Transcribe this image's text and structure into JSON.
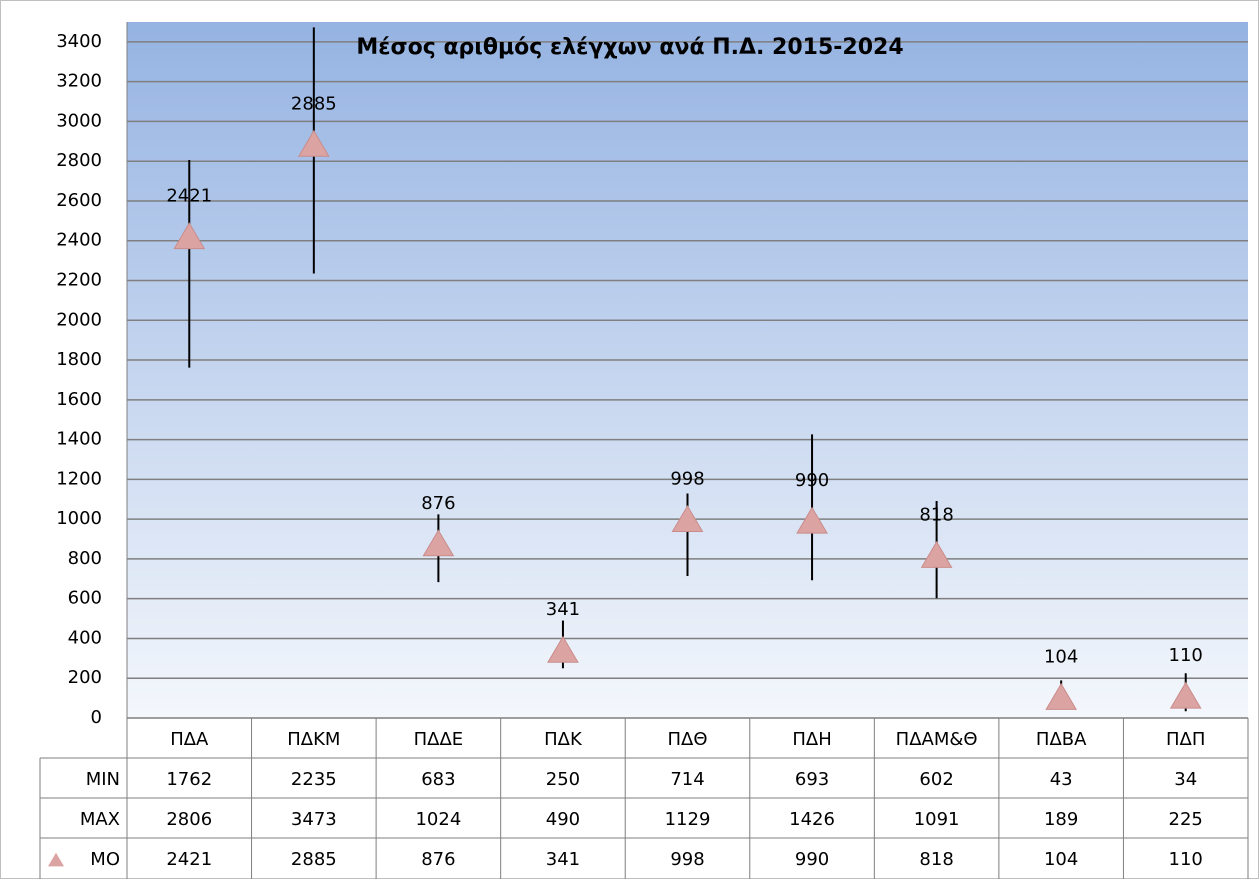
{
  "chart_data": {
    "type": "stock",
    "title": "Μέσος αριθμός ελέγχων ανά Π.Δ. 2015-2024",
    "categories": [
      "ΠΔΑ",
      "ΠΔΚΜ",
      "ΠΔΔΕ",
      "ΠΔΚ",
      "ΠΔΘ",
      "ΠΔΗ",
      "ΠΔΑΜ&Θ",
      "ΠΔΒΑ",
      "ΠΔΠ"
    ],
    "series": [
      {
        "name": "MIN",
        "color": "#000000",
        "values": [
          1762,
          2235,
          683,
          250,
          714,
          693,
          602,
          43,
          34
        ]
      },
      {
        "name": "MAX",
        "color": "#000000",
        "values": [
          2806,
          3473,
          1024,
          490,
          1129,
          1426,
          1091,
          189,
          225
        ]
      },
      {
        "name": "MO",
        "color": "#dba3a2",
        "values": [
          2421,
          2885,
          876,
          341,
          998,
          990,
          818,
          104,
          110
        ]
      }
    ],
    "ylim": [
      0,
      3500
    ],
    "yticks": [
      0,
      200,
      400,
      600,
      800,
      1000,
      1200,
      1400,
      1600,
      1800,
      2000,
      2200,
      2400,
      2600,
      2800,
      3000,
      3200,
      3400
    ],
    "grid": true
  }
}
